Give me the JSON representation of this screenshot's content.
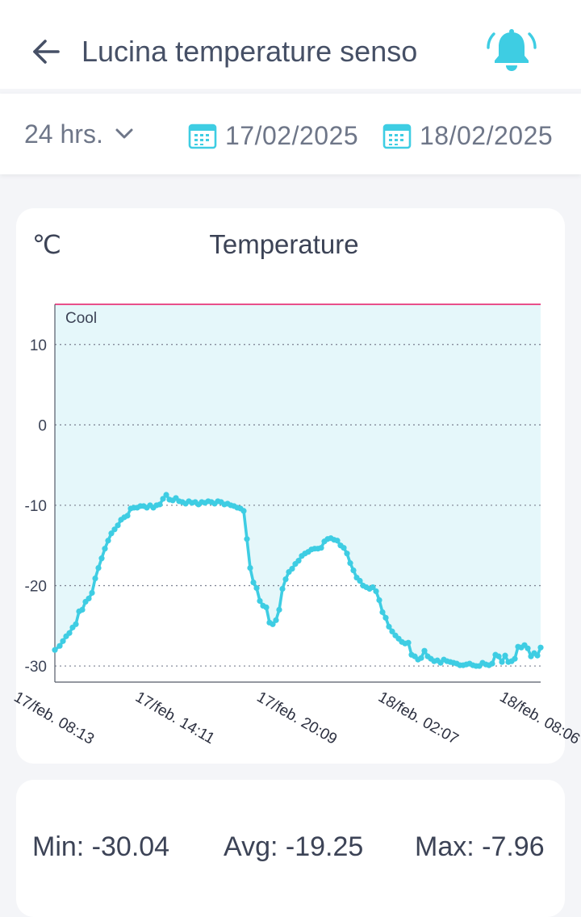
{
  "header": {
    "title": "Lucina temperature senso",
    "back_icon": "arrow-left-icon",
    "alert_icon": "bell-ringing-icon",
    "alert_color": "#3ecde3"
  },
  "filters": {
    "range_label": "24 hrs.",
    "start_date": "17/02/2025",
    "end_date": "18/02/2025",
    "calendar_icon": "calendar-icon",
    "calendar_color": "#3ecde3"
  },
  "chart": {
    "unit": "℃",
    "title": "Temperature"
  },
  "chart_data": {
    "type": "line",
    "title": "Temperature",
    "ylabel": "℃",
    "ylim": [
      -32,
      15
    ],
    "yticks": [
      10,
      0,
      -10,
      -20,
      -30
    ],
    "grid": true,
    "band": {
      "label": "Cool",
      "from": -32,
      "to": 15,
      "color": "#e5f7fa",
      "top_line_color": "#e8508a"
    },
    "x_tick_labels": [
      "17/feb. 08:13",
      "17/feb. 14:11",
      "17/feb. 20:09",
      "18/feb. 02:07",
      "18/feb. 08:06"
    ],
    "series": [
      {
        "color": "#3ecde3",
        "x": [
          0,
          3,
          5,
          7,
          9,
          11,
          13,
          15,
          17,
          19,
          21,
          23,
          25,
          27,
          29,
          31,
          33,
          35,
          37,
          39,
          41,
          43,
          45,
          47,
          49,
          51,
          53,
          55,
          57,
          59,
          61,
          63,
          65,
          67,
          69,
          71,
          73,
          75,
          77,
          79,
          81,
          83,
          85,
          87,
          89,
          91,
          93,
          95,
          97,
          99,
          101,
          103,
          105,
          107,
          109,
          111,
          113,
          115,
          117,
          119,
          121,
          123,
          125,
          127,
          129,
          131,
          133,
          135,
          137,
          139,
          141,
          143,
          145,
          147,
          149,
          151,
          153,
          155,
          157,
          159,
          161,
          163,
          165,
          167,
          169,
          171,
          173,
          175,
          177,
          179,
          181,
          183,
          185,
          187,
          189,
          191,
          193,
          195,
          197,
          199,
          201,
          203,
          205,
          207,
          209,
          211,
          213,
          215,
          217,
          219,
          221,
          223,
          225,
          227,
          229,
          231,
          233,
          235,
          237,
          239,
          241,
          243,
          245,
          247,
          249,
          251,
          253,
          255,
          257,
          259,
          261,
          263,
          265,
          267,
          269,
          271,
          273,
          275,
          277,
          279,
          281,
          283,
          285,
          287,
          289,
          291,
          293,
          295,
          297,
          299,
          301
        ],
        "values": [
          -28.0,
          -27.5,
          -26.9,
          -26.3,
          -25.9,
          -25.2,
          -24.8,
          -23.2,
          -23.0,
          -22.0,
          -21.6,
          -20.9,
          -19.1,
          -17.8,
          -16.6,
          -15.4,
          -14.4,
          -13.5,
          -13.0,
          -12.5,
          -11.8,
          -11.5,
          -11.3,
          -10.4,
          -10.3,
          -10.3,
          -10.1,
          -10.1,
          -10.3,
          -10.0,
          -10.3,
          -10.0,
          -9.9,
          -9.2,
          -8.7,
          -9.3,
          -9.4,
          -9.1,
          -9.5,
          -9.6,
          -9.8,
          -9.5,
          -9.7,
          -9.6,
          -9.9,
          -9.6,
          -9.7,
          -9.5,
          -9.6,
          -9.8,
          -9.5,
          -9.6,
          -9.9,
          -9.8,
          -10.0,
          -10.1,
          -10.3,
          -10.4,
          -10.7,
          -14.2,
          -17.8,
          -19.6,
          -20.3,
          -21.9,
          -22.5,
          -22.7,
          -24.6,
          -24.8,
          -24.3,
          -23.0,
          -20.4,
          -19.2,
          -18.3,
          -17.9,
          -17.3,
          -16.9,
          -16.3,
          -16.0,
          -15.8,
          -15.5,
          -15.4,
          -15.4,
          -15.3,
          -14.5,
          -14.2,
          -14.1,
          -14.3,
          -14.4,
          -15.0,
          -15.3,
          -16.0,
          -17.2,
          -18.1,
          -19.0,
          -19.4,
          -20.0,
          -20.2,
          -20.4,
          -20.2,
          -20.7,
          -21.8,
          -23.3,
          -24.0,
          -25.1,
          -25.7,
          -26.2,
          -26.6,
          -27.0,
          -27.2,
          -27.1,
          -28.6,
          -28.8,
          -29.2,
          -29.0,
          -28.1,
          -28.8,
          -29.1,
          -29.4,
          -29.3,
          -29.6,
          -29.2,
          -29.4,
          -29.5,
          -29.6,
          -29.7,
          -29.9,
          -29.9,
          -29.8,
          -29.7,
          -29.9,
          -30.0,
          -30.0,
          -29.6,
          -29.8,
          -29.9,
          -29.7,
          -28.6,
          -28.8,
          -29.5,
          -28.7,
          -29.5,
          -29.4,
          -29.1,
          -27.6,
          -27.7,
          -27.4,
          -27.8,
          -28.8,
          -28.4,
          -28.7,
          -27.7
        ]
      }
    ]
  },
  "stats": {
    "min": "Min: -30.04",
    "avg": "Avg: -19.25",
    "max": "Max: -7.96"
  }
}
